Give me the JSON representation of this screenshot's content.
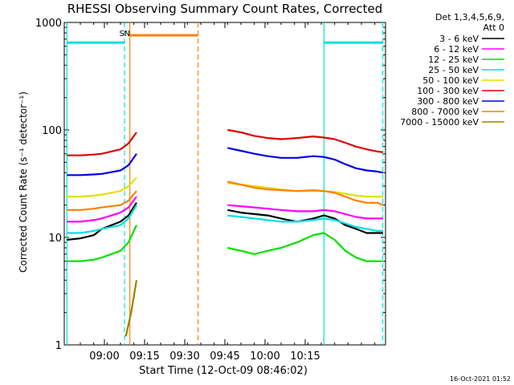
{
  "chart_data": {
    "type": "line",
    "title": "RHESSI Observing Summary Count Rates, Corrected",
    "xlabel": "Start Time (12-Oct-09 08:46:02)",
    "ylabel": "Corrected Count Rate (s⁻¹ detector⁻¹)",
    "y_scale": "log",
    "ylim": [
      1,
      1000
    ],
    "xlim_minutes": [
      -1,
      119
    ],
    "x_ticks": [
      {
        "label": "09:00",
        "minute": 14
      },
      {
        "label": "09:15",
        "minute": 29
      },
      {
        "label": "09:30",
        "minute": 44
      },
      {
        "label": "09:45",
        "minute": 59
      },
      {
        "label": "10:00",
        "minute": 74
      },
      {
        "label": "10:15",
        "minute": 89
      }
    ],
    "y_ticks": [
      {
        "label": "1",
        "value": 1
      },
      {
        "label": "10",
        "value": 10
      },
      {
        "label": "100",
        "value": 100
      },
      {
        "label": "1000",
        "value": 1000
      }
    ],
    "legend_header": [
      "Det 1,3,4,5,6,9,",
      "Att 0"
    ],
    "legend_placement": "right",
    "series": [
      {
        "name": "3 - 6 keV",
        "color": "#000000",
        "x": [
          0,
          5,
          10,
          13,
          20,
          23,
          26,
          30,
          34,
          38,
          42,
          46,
          50,
          54,
          58,
          60,
          65,
          70,
          75,
          80,
          86,
          92,
          96,
          100,
          104,
          108,
          112,
          116,
          118
        ],
        "y": [
          9.5,
          9.8,
          10.5,
          12,
          14,
          16,
          21,
          null,
          null,
          null,
          null,
          null,
          null,
          null,
          null,
          18,
          17,
          16.5,
          16,
          15,
          14,
          15,
          16,
          15,
          13,
          12,
          11,
          11,
          11
        ]
      },
      {
        "name": "6 - 12 keV",
        "color": "#ff00ff",
        "x": [
          0,
          5,
          10,
          13,
          20,
          23,
          26,
          30,
          34,
          38,
          42,
          46,
          50,
          54,
          58,
          60,
          65,
          70,
          75,
          80,
          86,
          92,
          96,
          100,
          104,
          108,
          112,
          116,
          118
        ],
        "y": [
          14,
          14,
          14.5,
          15,
          17,
          19,
          24,
          null,
          null,
          null,
          null,
          null,
          null,
          null,
          null,
          20,
          19.5,
          19,
          18.5,
          18,
          17.5,
          17.5,
          18,
          17.5,
          16.5,
          15.5,
          15,
          15,
          15
        ]
      },
      {
        "name": "12 - 25 keV",
        "color": "#00e000",
        "x": [
          0,
          5,
          10,
          13,
          20,
          23,
          26,
          30,
          34,
          38,
          42,
          46,
          50,
          54,
          58,
          60,
          65,
          70,
          75,
          80,
          86,
          92,
          96,
          100,
          104,
          108,
          112,
          116,
          118
        ],
        "y": [
          6,
          6,
          6.2,
          6.5,
          7.5,
          9,
          13,
          null,
          null,
          null,
          null,
          null,
          null,
          null,
          null,
          8,
          7.5,
          7,
          7.5,
          8,
          9,
          10.5,
          11,
          9.5,
          7.5,
          6.5,
          6,
          6,
          6
        ]
      },
      {
        "name": "25 - 50 keV",
        "color": "#00e0e0",
        "x": [
          0,
          5,
          10,
          13,
          20,
          23,
          26,
          30,
          34,
          38,
          42,
          46,
          50,
          54,
          58,
          60,
          65,
          70,
          75,
          80,
          86,
          92,
          96,
          100,
          104,
          108,
          112,
          116,
          118
        ],
        "y": [
          11,
          11,
          11.5,
          12,
          13,
          15,
          20,
          null,
          null,
          null,
          null,
          null,
          null,
          null,
          null,
          16,
          15.5,
          15,
          14.5,
          14,
          14,
          14.5,
          15,
          14.5,
          13.5,
          12.5,
          12,
          11.5,
          11.5
        ]
      },
      {
        "name": "50 - 100 keV",
        "color": "#e0e000",
        "x": [
          0,
          5,
          10,
          13,
          20,
          23,
          26,
          30,
          34,
          38,
          42,
          46,
          50,
          54,
          58,
          60,
          65,
          70,
          75,
          80,
          86,
          92,
          96,
          100,
          104,
          108,
          112,
          116,
          118
        ],
        "y": [
          24,
          24,
          24.5,
          25,
          27,
          30,
          36,
          null,
          null,
          null,
          null,
          null,
          null,
          null,
          null,
          32,
          31,
          30,
          29,
          28,
          27,
          27,
          27,
          26.5,
          25.5,
          24.5,
          24,
          24,
          24
        ]
      },
      {
        "name": "100 - 300 keV",
        "color": "#e00000",
        "x": [
          0,
          5,
          10,
          13,
          20,
          23,
          26,
          30,
          34,
          38,
          42,
          46,
          50,
          54,
          58,
          60,
          65,
          70,
          75,
          80,
          86,
          92,
          96,
          100,
          104,
          108,
          112,
          116,
          118
        ],
        "y": [
          58,
          58,
          59,
          60,
          66,
          75,
          95,
          null,
          null,
          null,
          null,
          null,
          null,
          null,
          null,
          100,
          95,
          88,
          84,
          82,
          84,
          87,
          85,
          82,
          76,
          70,
          66,
          63,
          62
        ]
      },
      {
        "name": "300 - 800 keV",
        "color": "#0000e0",
        "x": [
          0,
          5,
          10,
          13,
          20,
          23,
          26,
          30,
          34,
          38,
          42,
          46,
          50,
          54,
          58,
          60,
          65,
          70,
          75,
          80,
          86,
          92,
          96,
          100,
          104,
          108,
          112,
          116,
          118
        ],
        "y": [
          38,
          38,
          38.5,
          39,
          42,
          47,
          60,
          null,
          null,
          null,
          null,
          null,
          null,
          null,
          null,
          68,
          64,
          60,
          57,
          55,
          55,
          57,
          56,
          53,
          48,
          44,
          42,
          41,
          40
        ]
      },
      {
        "name": "800 - 7000 keV",
        "color": "#ff8000",
        "x": [
          0,
          5,
          10,
          13,
          20,
          23,
          26,
          30,
          34,
          38,
          42,
          46,
          50,
          54,
          58,
          60,
          65,
          70,
          75,
          80,
          86,
          92,
          96,
          100,
          104,
          108,
          112,
          116,
          118
        ],
        "y": [
          18,
          18,
          18.5,
          19,
          20,
          22,
          27,
          null,
          null,
          null,
          null,
          null,
          null,
          null,
          null,
          33,
          31,
          29,
          28,
          27.5,
          27,
          27.5,
          27,
          26,
          24,
          22,
          21,
          21,
          20
        ]
      },
      {
        "name": "7000 - 15000 keV",
        "color": "#a08000",
        "x": [
          22,
          24,
          26
        ],
        "y": [
          1.2,
          2,
          4
        ]
      }
    ],
    "overlays": [
      {
        "label": "S",
        "color": "#a0a000",
        "minute": 20.5
      },
      {
        "label": "N",
        "color": "#00c0c0",
        "minute": 22.5
      }
    ],
    "state_bars": [
      {
        "name": "saa-attenuator-level",
        "color": "#00e0e0",
        "segments": [
          [
            0,
            21.5
          ],
          [
            96,
            118
          ]
        ],
        "value": 650
      },
      {
        "name": "eclipse-level",
        "color": "#ff8000",
        "segments": [
          [
            23.5,
            49
          ]
        ],
        "value": 760
      }
    ],
    "vlines": [
      {
        "minute": 0,
        "color": "#00e0e0",
        "style": "solid"
      },
      {
        "minute": 21.5,
        "color": "#00e0e0",
        "style": "dashed"
      },
      {
        "minute": 23.5,
        "color": "#ff8000",
        "style": "solid"
      },
      {
        "minute": 49,
        "color": "#ff8000",
        "style": "dashed"
      },
      {
        "minute": 96,
        "color": "#00e0e0",
        "style": "solid"
      },
      {
        "minute": 118,
        "color": "#00e0e0",
        "style": "dashed"
      }
    ],
    "grid": false
  },
  "footer": {
    "timestamp": "16-Oct-2021 01:52"
  }
}
